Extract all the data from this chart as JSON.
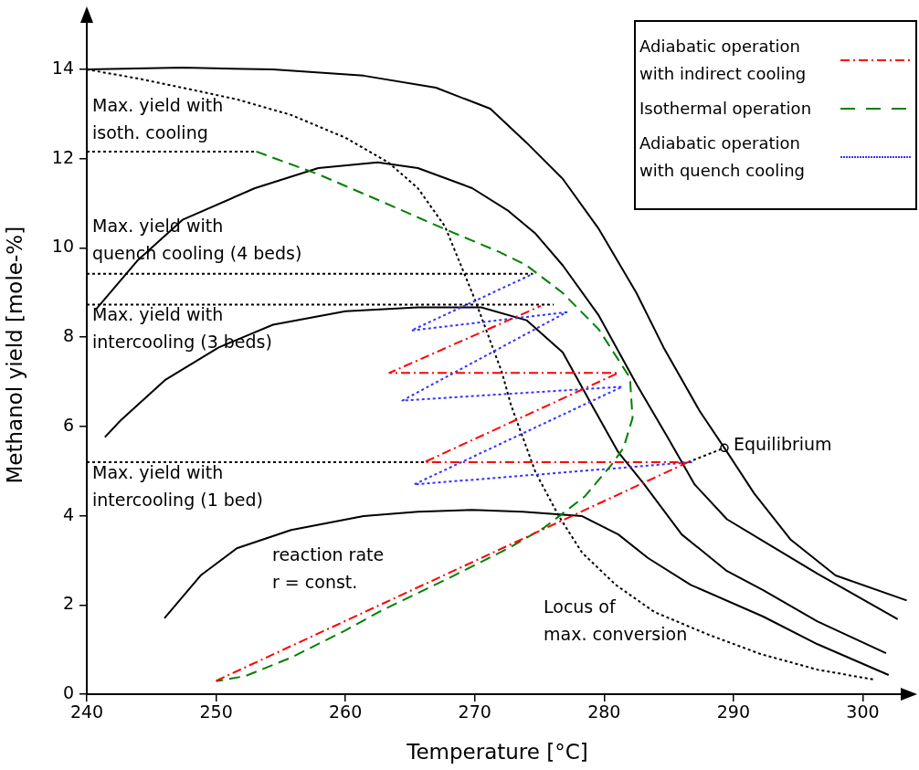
{
  "chart_data": {
    "type": "line",
    "xlabel": "Temperature [°C]",
    "ylabel": "Methanol yield [mole-%]",
    "xlim": [
      240,
      303.5
    ],
    "ylim": [
      0,
      15.2
    ],
    "xticks": [
      240,
      250,
      260,
      270,
      280,
      290,
      300
    ],
    "yticks": [
      0,
      2,
      4,
      6,
      8,
      10,
      12,
      14
    ],
    "legend": "top right",
    "marker": "none",
    "series": [
      {
        "name": "Adiabatic operation with indirect cooling",
        "color": "#ff0000",
        "line_style": "dashdot",
        "x": [
          250,
          286.5,
          266.1,
          281.1,
          263.4,
          275.1
        ],
        "values": [
          0.3,
          5.2,
          5.2,
          7.2,
          7.2,
          8.7
        ]
      },
      {
        "name": "Isothermal operation",
        "color": "#008000",
        "line_style": "dashed",
        "x": [
          253.1,
          257.9,
          262.8,
          267.7,
          271.9,
          274.0,
          276.8,
          279.6,
          281.4,
          282.0,
          282.2,
          281.5,
          280.6,
          278.5,
          275.4,
          272.6,
          268.4,
          262.7,
          260.0,
          255.8,
          252.3,
          250.0
        ],
        "values": [
          12.16,
          11.65,
          11.04,
          10.42,
          9.91,
          9.61,
          8.99,
          8.17,
          7.36,
          7.09,
          6.19,
          5.52,
          5.15,
          4.43,
          3.74,
          3.27,
          2.66,
          1.86,
          1.43,
          0.82,
          0.41,
          0.29
        ]
      },
      {
        "name": "Adiabatic operation with quench cooling",
        "color": "#3333ff",
        "line_style": "dotted",
        "x": [
          286.8,
          265.3,
          281.4,
          264.4,
          277.1,
          265.1,
          274.5
        ],
        "values": [
          5.2,
          4.7,
          6.89,
          6.58,
          8.56,
          8.15,
          9.42
        ]
      },
      {
        "color": "#000000",
        "line_style": "solid",
        "x": [
          240,
          247.4,
          254.4,
          261.4,
          267.0,
          271.2,
          274.0,
          276.8,
          279.6,
          282.5,
          284.6,
          287.4,
          289.3,
          291.6,
          294.4,
          297.9,
          303.4
        ],
        "values": [
          14.0,
          14.04,
          14.0,
          13.86,
          13.59,
          13.12,
          12.36,
          11.55,
          10.42,
          8.99,
          7.77,
          6.34,
          5.52,
          4.5,
          3.47,
          2.66,
          2.1
        ]
      },
      {
        "color": "#000000",
        "line_style": "solid",
        "x": [
          240.7,
          243.9,
          247.4,
          253.0,
          257.9,
          262.5,
          265.6,
          269.8,
          272.6,
          274.7,
          276.8,
          279.6,
          282.5,
          284.9,
          287.0,
          289.5,
          292.3,
          296.5,
          302.7
        ],
        "values": [
          8.62,
          9.71,
          10.63,
          11.34,
          11.79,
          11.92,
          11.79,
          11.34,
          10.83,
          10.32,
          9.61,
          8.48,
          6.95,
          5.76,
          4.7,
          3.92,
          3.43,
          2.7,
          1.68
        ]
      },
      {
        "color": "#000000",
        "line_style": "solid",
        "x": [
          241.4,
          242.6,
          246.1,
          250.2,
          254.4,
          260.0,
          265.6,
          270.5,
          274.0,
          276.8,
          279.2,
          281.1,
          283.0,
          286.0,
          289.5,
          292.3,
          296.5,
          301.8
        ],
        "values": [
          5.76,
          6.13,
          7.05,
          7.77,
          8.28,
          8.58,
          8.67,
          8.67,
          8.38,
          7.66,
          6.4,
          5.42,
          4.74,
          3.58,
          2.76,
          2.33,
          1.63,
          0.92
        ]
      },
      {
        "color": "#000000",
        "line_style": "solid",
        "x": [
          246.0,
          248.8,
          251.6,
          255.8,
          261.4,
          265.6,
          269.8,
          273.7,
          278.3,
          281.1,
          283.4,
          286.7,
          292.3,
          296.5,
          302.0
        ],
        "values": [
          1.7,
          2.66,
          3.27,
          3.68,
          3.99,
          4.09,
          4.13,
          4.09,
          3.99,
          3.58,
          3.05,
          2.45,
          1.74,
          1.12,
          0.43
        ]
      },
      {
        "color": "#000000",
        "line_style": "dotted",
        "x": [
          240,
          243.9,
          247.4,
          251.6,
          255.8,
          260.0,
          263.3,
          265.6,
          267.7,
          270.0,
          272.1,
          272.8,
          274.7,
          276.5,
          278.3,
          280.9,
          283.9,
          288.1,
          292.1,
          296.5,
          300.8
        ],
        "values": [
          14.0,
          13.8,
          13.59,
          13.33,
          12.98,
          12.47,
          11.92,
          11.34,
          10.48,
          8.85,
          7.21,
          6.48,
          4.97,
          3.99,
          3.17,
          2.45,
          1.84,
          1.33,
          0.9,
          0.55,
          0.33
        ]
      },
      {
        "color": "#000000",
        "line_style": "dotted",
        "x": [
          240,
          253.1
        ],
        "values": [
          12.16,
          12.16
        ]
      },
      {
        "color": "#000000",
        "line_style": "dotted",
        "x": [
          240,
          274.5
        ],
        "values": [
          9.42,
          9.42
        ]
      },
      {
        "color": "#000000",
        "line_style": "dotted",
        "x": [
          240,
          276.1
        ],
        "values": [
          8.73,
          8.73
        ]
      },
      {
        "color": "#000000",
        "line_style": "dotted",
        "x": [
          240,
          266.1
        ],
        "values": [
          5.2,
          5.2
        ]
      },
      {
        "color": "#000000",
        "line_style": "dotted",
        "x": [
          286.5,
          289.3
        ],
        "values": [
          5.2,
          5.52
        ]
      },
      {
        "type": "scatter",
        "color": "#000000",
        "marker": "circle",
        "x": [
          289.3
        ],
        "values": [
          5.52
        ]
      }
    ],
    "annotations": [
      "Max. yield with\nisoth. cooling",
      "Max. yield with\nquench cooling (4 beds)",
      "Max. yield with\nintercooling (3 beds)",
      "Max. yield with\nintercooling (1 bed)",
      "reaction rate\nr = const.",
      "Locus of\nmax. conversion",
      {
        "text": "Equilibrium",
        "x": 289.3,
        "y": 5.52
      }
    ]
  }
}
